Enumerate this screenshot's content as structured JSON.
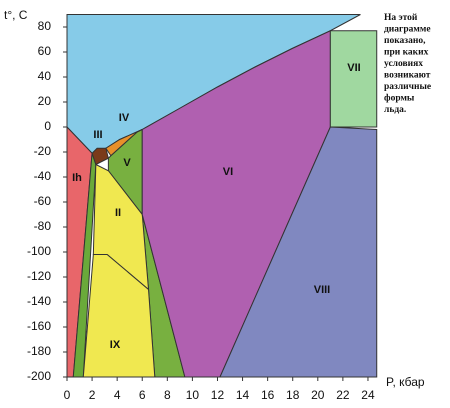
{
  "chart_data": {
    "type": "region",
    "ylabel": "t°, C",
    "xlabel": "P, кбар",
    "note": [
      "На этой",
      "диаграмме",
      "показано,",
      "при каких",
      "условиях",
      "возникают",
      "различные",
      "формы",
      "льда."
    ],
    "xlim": [
      0,
      24.7
    ],
    "ylim": [
      -200,
      90
    ],
    "xticks": [
      0,
      2,
      4,
      6,
      8,
      10,
      12,
      14,
      16,
      18,
      20,
      22,
      24
    ],
    "yticks": [
      -200,
      -180,
      -160,
      -140,
      -120,
      -100,
      -80,
      -60,
      -40,
      -20,
      0,
      20,
      40,
      60,
      80
    ],
    "regions": [
      {
        "color": "#86cbe8",
        "x": [
          0,
          0,
          2,
          3.1,
          4.2,
          6,
          9,
          12,
          15,
          18,
          21,
          23.4
        ],
        "y": [
          90,
          0,
          -21,
          -17,
          -10,
          -2,
          15,
          32,
          48,
          63,
          77,
          90
        ]
      },
      {
        "name": "Ih",
        "color": "#e8666a",
        "x": [
          0,
          2,
          0.5,
          0
        ],
        "y": [
          0,
          -21,
          -200,
          -200
        ]
      },
      {
        "color": "#6aaa3a",
        "x": [
          2,
          2.3,
          1.3,
          0.5
        ],
        "y": [
          -21,
          -30,
          -200,
          -200
        ]
      },
      {
        "name": "III",
        "color": "#7a3a1a",
        "x": [
          2,
          2.4,
          3.1,
          3.3,
          2.3
        ],
        "y": [
          -21,
          -17,
          -17,
          -25,
          -30
        ]
      },
      {
        "name": "IV",
        "color": "#e8902a",
        "x": [
          3.1,
          4.2,
          6,
          5.6,
          3.5
        ],
        "y": [
          -17,
          -10,
          -2,
          -4,
          -23
        ]
      },
      {
        "name": "V",
        "color": "#78b040",
        "x": [
          3.3,
          3.5,
          5.6,
          6,
          6,
          9.4,
          7,
          6.5,
          6,
          3.3
        ],
        "y": [
          -25,
          -23,
          -4,
          -2,
          -70,
          -200,
          -200,
          -130,
          -70,
          -35
        ]
      },
      {
        "name": "II",
        "color": "#f0e850",
        "x": [
          2.3,
          3.3,
          6,
          6.5,
          3.2,
          2.1
        ],
        "y": [
          -30,
          -35,
          -70,
          -130,
          -102,
          -102
        ]
      },
      {
        "name": "IX",
        "color": "#f0e850",
        "x": [
          2.1,
          3.2,
          6.5,
          7,
          1.3
        ],
        "y": [
          -102,
          -102,
          -130,
          -200,
          -200
        ]
      },
      {
        "name": "VI",
        "color": "#b060b0",
        "x": [
          6,
          9,
          12,
          15,
          18,
          21,
          21,
          12.2,
          9.4,
          6
        ],
        "y": [
          -2,
          15,
          32,
          48,
          63,
          77,
          0,
          -200,
          -200,
          -70
        ]
      },
      {
        "name": "VII",
        "color": "#a0d8a0",
        "x": [
          21,
          24.7,
          24.7,
          21
        ],
        "y": [
          77,
          77,
          0,
          0
        ]
      },
      {
        "name": "VIII",
        "color": "#8088c0",
        "x": [
          21,
          24.7,
          24.7,
          12.2
        ],
        "y": [
          0,
          -2,
          -200,
          -200
        ]
      }
    ]
  }
}
